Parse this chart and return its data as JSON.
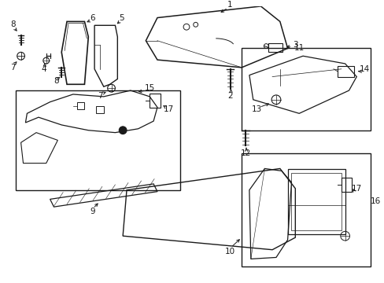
{
  "background_color": "#ffffff",
  "line_color": "#1a1a1a",
  "figsize": [
    4.89,
    3.6
  ],
  "dpi": 100,
  "fs": 7.5
}
